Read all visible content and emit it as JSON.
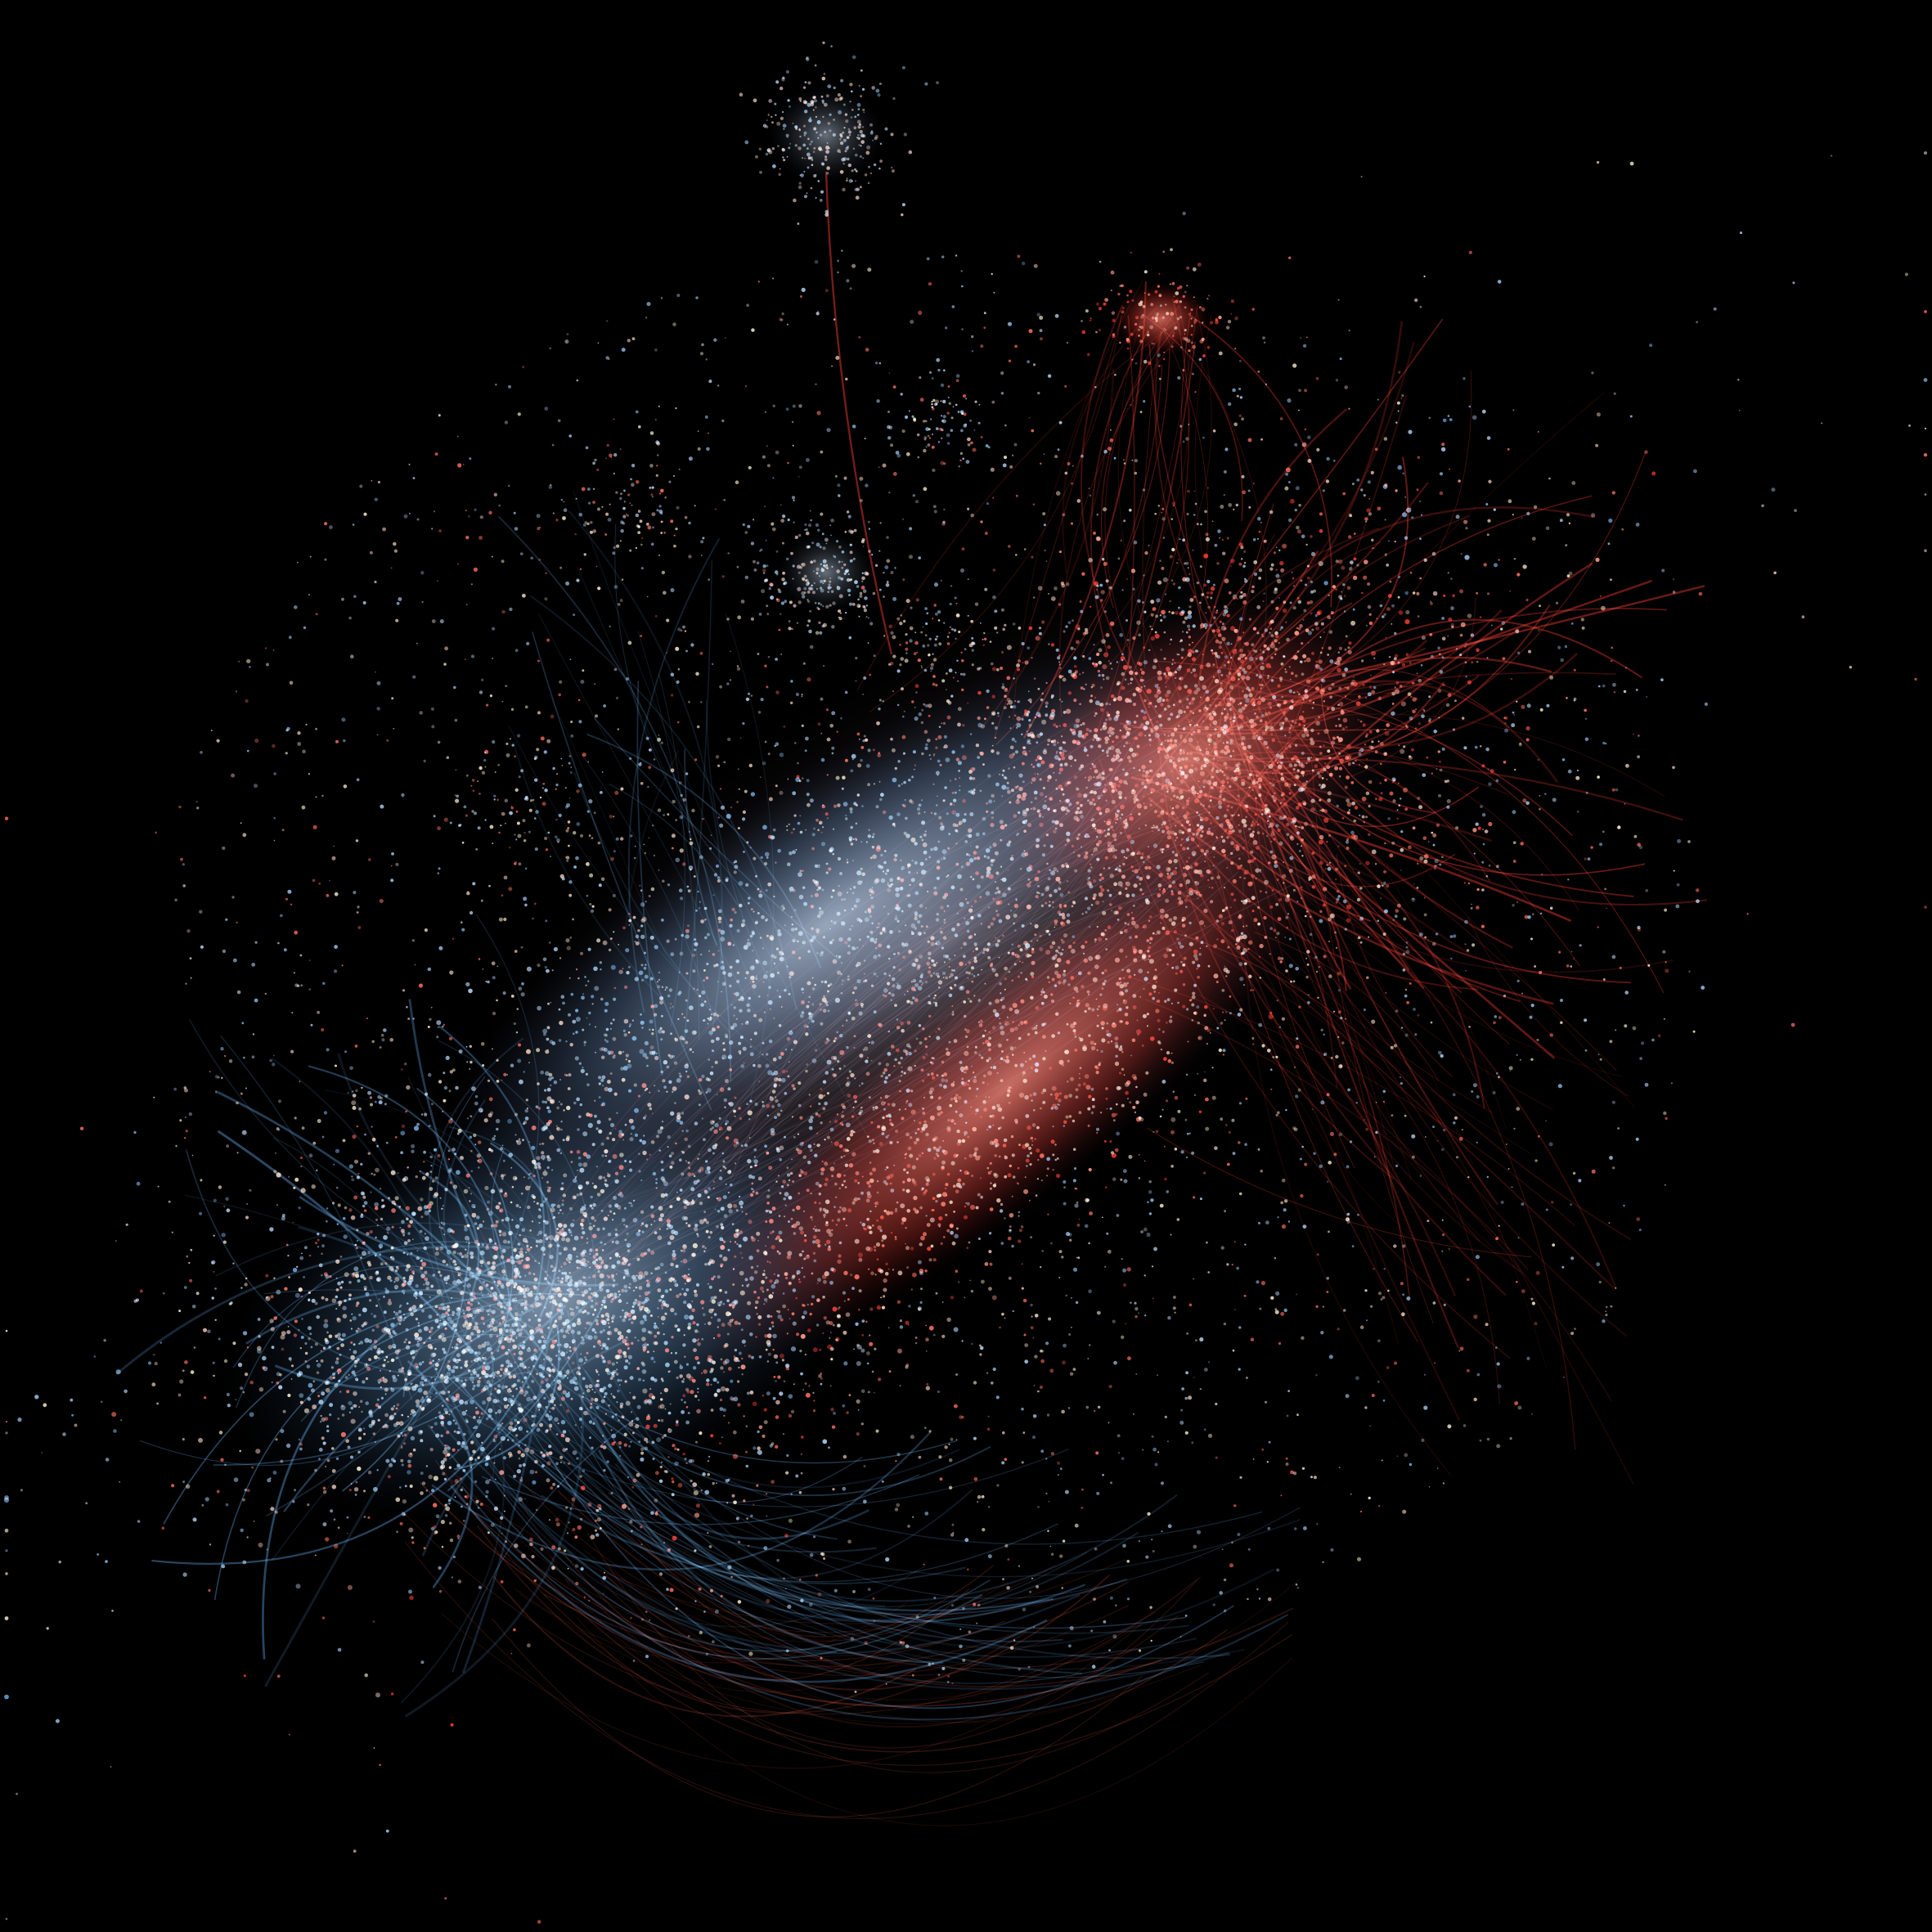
{
  "figure": {
    "type": "network-graph",
    "background": "#000000",
    "title": "",
    "legend": "none",
    "text_labels": "none"
  },
  "palette": {
    "blue_edge": "#5b9bd5",
    "blue_node": "#8fb8dd",
    "red_edge": "#e8392f",
    "red_node": "#f06a5a",
    "neutral_node": "#d8b8a8",
    "cream_node": "#f2e3c4"
  },
  "clusters": [
    {
      "name": "blue-dense-cluster",
      "color": "#8fb8dd",
      "relative_density": "high",
      "edge_color": "#5b9bd5"
    },
    {
      "name": "red-dense-cluster",
      "color": "#f06a5a",
      "relative_density": "high",
      "edge_color": "#e8392f"
    },
    {
      "name": "mixed-bridge-band",
      "color": "#c9a0b0",
      "relative_density": "medium",
      "edge_color": "#b0708a"
    },
    {
      "name": "satellite-cluster-top",
      "color": "#a9bcd0",
      "relative_density": "low",
      "edge_color": "#c04030"
    },
    {
      "name": "scattered-periphery",
      "color": "#b8a8a8",
      "relative_density": "sparse",
      "edge_color": "#7a5060"
    }
  ]
}
